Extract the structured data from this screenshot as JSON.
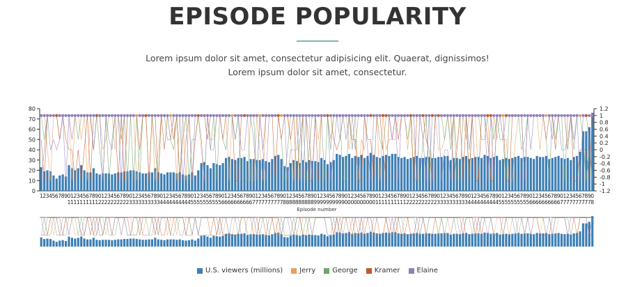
{
  "page": {
    "title": "EPISODE POPULARITY",
    "subtitle_line1": "Lorem ipsum dolor sit amet, consectetur adipisicing elit. Quaerat, dignissimos!",
    "subtitle_line2": "Lorem ipsum dolor sit amet, consectetur."
  },
  "colors": {
    "viewers": "#3d7fb5",
    "Jerry": "#e6a05e",
    "George": "#6ea56b",
    "Kramer": "#c0582e",
    "Elaine": "#8f80b8",
    "accent_rule": "#7fb8a8"
  },
  "legend": [
    {
      "label": "U.S. viewers (millions)",
      "color": "#3d7fb5"
    },
    {
      "label": "Jerry",
      "color": "#e6a05e"
    },
    {
      "label": "George",
      "color": "#6ea56b"
    },
    {
      "label": "Kramer",
      "color": "#c0582e"
    },
    {
      "label": "Elaine",
      "color": "#8f80b8"
    }
  ],
  "chart_data": {
    "type": "bar",
    "xlabel": "Episode number",
    "ylim": [
      0,
      80
    ],
    "y2lim": [
      -1.2,
      1.2
    ],
    "y_ticks": [
      0,
      10,
      20,
      30,
      40,
      50,
      60,
      70,
      80
    ],
    "y2_ticks": [
      "-1.2",
      "-1",
      "-0.8",
      "-0.6",
      "-0.4",
      "-0.2",
      "0",
      "0.2",
      "0.4",
      "0.6",
      "0.8",
      "1",
      "1.2"
    ],
    "episode_count": 180,
    "viewers": [
      23,
      19,
      20,
      19,
      15,
      12,
      15,
      16,
      14,
      25,
      22,
      20,
      22,
      25,
      20,
      18,
      18,
      22,
      17,
      16,
      17,
      17,
      17,
      16,
      17,
      18,
      18,
      19,
      19,
      20,
      20,
      19,
      18,
      17,
      17,
      18,
      18,
      22,
      18,
      17,
      16,
      18,
      18,
      18,
      17,
      18,
      16,
      15,
      16,
      18,
      15,
      20,
      27,
      28,
      25,
      22,
      27,
      26,
      25,
      27,
      32,
      33,
      31,
      30,
      32,
      32,
      33,
      29,
      31,
      31,
      30,
      30,
      31,
      29,
      28,
      31,
      34,
      35,
      31,
      24,
      23,
      27,
      30,
      29,
      27,
      30,
      28,
      30,
      29,
      29,
      28,
      32,
      30,
      26,
      28,
      30,
      36,
      35,
      33,
      34,
      36,
      32,
      34,
      33,
      35,
      32,
      34,
      37,
      35,
      33,
      32,
      34,
      35,
      34,
      36,
      36,
      33,
      32,
      33,
      31,
      32,
      33,
      34,
      32,
      32,
      33,
      33,
      32,
      32,
      33,
      33,
      34,
      34,
      30,
      32,
      32,
      31,
      33,
      34,
      31,
      32,
      33,
      33,
      32,
      35,
      34,
      32,
      33,
      34,
      30,
      31,
      32,
      31,
      32,
      33,
      34,
      32,
      33,
      33,
      32,
      31,
      34,
      33,
      33,
      34,
      31,
      32,
      33,
      34,
      32,
      31,
      32,
      30,
      33,
      34,
      38,
      58,
      58,
      62,
      76
    ],
    "sentiment_legend": [
      "Jerry",
      "George",
      "Kramer",
      "Elaine"
    ]
  }
}
